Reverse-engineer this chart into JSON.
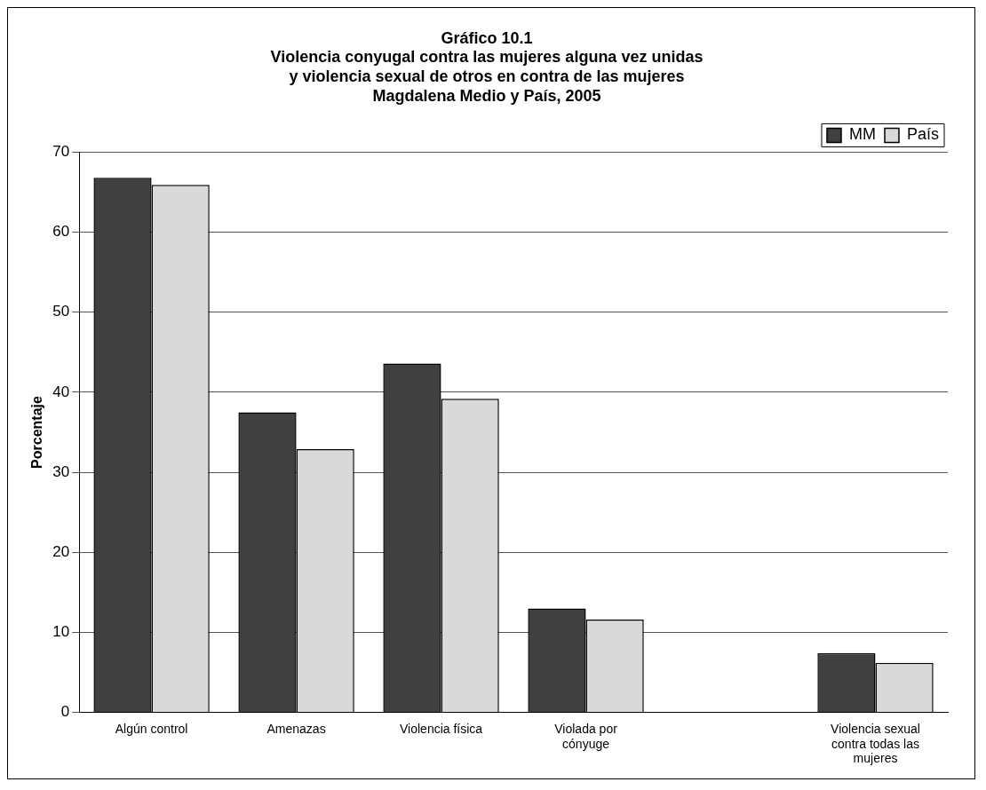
{
  "chart_data": {
    "type": "bar",
    "title": "Gráfico 10.1\nViolencia conyugal contra las mujeres alguna vez unidas\ny violencia sexual de otros en contra de las mujeres\nMagdalena Medio y País, 2005",
    "ylabel": "Porcentaje",
    "categories": [
      "Algún control",
      "Amenazas",
      "Violencia física",
      "Violada por cónyuge",
      null,
      "Violencia sexual contra todas las mujeres"
    ],
    "series": [
      {
        "name": "MM",
        "color": "#404040",
        "values": [
          66.8,
          37.5,
          43.6,
          13.0,
          null,
          7.4
        ]
      },
      {
        "name": "País",
        "color": "#d9d9d9",
        "values": [
          65.9,
          32.9,
          39.2,
          11.6,
          null,
          6.2
        ]
      }
    ],
    "ylim": [
      0,
      70
    ],
    "yticks": [
      0,
      10,
      20,
      30,
      40,
      50,
      60,
      70
    ],
    "grid": "y",
    "legend": "top right"
  }
}
